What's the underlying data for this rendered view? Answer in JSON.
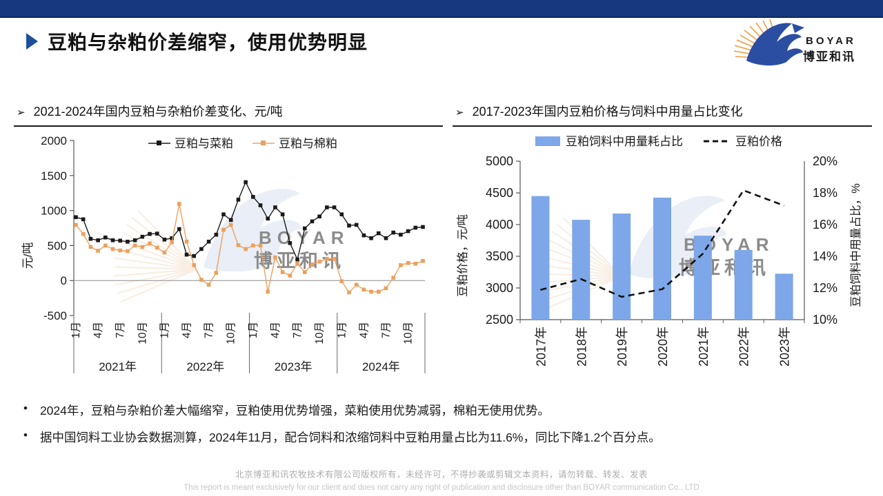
{
  "header": {
    "title": "豆粕与杂粕价差缩窄，使用优势明显"
  },
  "logo": {
    "brand": "BOYAR",
    "brand_cn": "博亚和讯"
  },
  "panels": {
    "heading_marker": "➢",
    "left_heading": "2021-2024年国内豆粕与杂粕价差变化、元/吨",
    "right_heading": "2017-2023年国内豆粕价格与饲料中用量占比变化"
  },
  "colors": {
    "topbar": "#17377E",
    "accent_blue": "#1D4F9E",
    "series_black": "#1A1A1A",
    "series_orange": "#EDA05C",
    "bar_blue": "#7DA7E8"
  },
  "chart_data": [
    {
      "type": "line",
      "title": "2021-2024年国内豆粕与杂粕价差变化、元/吨",
      "ylabel": "元/吨",
      "ylim": [
        -500,
        2000
      ],
      "yticks": [
        2000,
        1500,
        1000,
        500,
        0,
        -500
      ],
      "grid": false,
      "legend_position": "top",
      "year_labels": [
        "2021年",
        "2022年",
        "2023年",
        "2024年"
      ],
      "month_tick_labels": [
        "1月",
        "4月",
        "7月",
        "10月"
      ],
      "month_tick_positions": [
        0,
        3,
        6,
        9
      ],
      "series": [
        {
          "name": "豆粕与菜粕",
          "color": "#1A1A1A",
          "values": [
            905,
            875,
            595,
            575,
            615,
            575,
            570,
            555,
            575,
            625,
            665,
            670,
            585,
            605,
            735,
            370,
            350,
            450,
            555,
            655,
            945,
            865,
            1155,
            1405,
            1195,
            1075,
            885,
            1045,
            945,
            535,
            300,
            745,
            845,
            915,
            1045,
            1045,
            945,
            785,
            795,
            645,
            605,
            675,
            605,
            685,
            655,
            705,
            755,
            765
          ]
        },
        {
          "name": "豆粕与棉粕",
          "color": "#EDA05C",
          "values": [
            795,
            665,
            480,
            425,
            500,
            450,
            430,
            420,
            500,
            480,
            530,
            470,
            400,
            545,
            1095,
            555,
            220,
            10,
            -60,
            110,
            725,
            795,
            505,
            450,
            500,
            500,
            -160,
            330,
            120,
            70,
            240,
            120,
            230,
            270,
            310,
            310,
            -10,
            -170,
            -60,
            -130,
            -160,
            -160,
            -110,
            40,
            220,
            250,
            240,
            280
          ]
        }
      ]
    },
    {
      "type": "bar+line",
      "title": "2017-2023年国内豆粕价格与饲料中用量占比变化",
      "categories": [
        "2017年",
        "2018年",
        "2019年",
        "2020年",
        "2021年",
        "2022年",
        "2023年"
      ],
      "left_axis": {
        "label": "豆粕价格，元/吨",
        "lim": [
          2500,
          5000
        ],
        "ticks": [
          5000,
          4500,
          4000,
          3500,
          3000,
          2500
        ]
      },
      "right_axis": {
        "label": "豆粕饲料中用量占比，%",
        "lim": [
          10,
          20
        ],
        "ticks": [
          "20%",
          "18%",
          "16%",
          "14%",
          "12%",
          "10%"
        ]
      },
      "series": [
        {
          "name": "豆粕饲料中用量耗占比",
          "type": "bar",
          "axis": "right",
          "color": "#7DA7E8",
          "values": [
            17.8,
            16.3,
            16.7,
            17.7,
            15.3,
            14.4,
            12.9
          ]
        },
        {
          "name": "豆粕价格",
          "type": "line",
          "style": "dashed",
          "axis": "left",
          "color": "#111111",
          "values": [
            2970,
            3140,
            2860,
            2980,
            3540,
            4540,
            4300
          ]
        }
      ]
    }
  ],
  "bullets": [
    {
      "marker": "•",
      "text": "2024年，豆粕与杂粕价差大幅缩窄，豆粕使用优势增强，菜粕使用优势减弱，棉粕无使用优势。"
    },
    {
      "marker": "•",
      "text": "据中国饲料工业协会数据测算，2024年11月，配合饲料和浓缩饲料中豆粕用量占比为11.6%，同比下降1.2个百分点。"
    }
  ],
  "footer": {
    "line1": "北京博亚和讯农牧技术有限公司版权所有，未经许可，不得抄袭或剪辑文本资料，请勿转载、转发、发表",
    "line2": "This report is meant exclusively for our client and does not carry any right of publication and disclosure other than BOYAR communication Co., LTD"
  }
}
